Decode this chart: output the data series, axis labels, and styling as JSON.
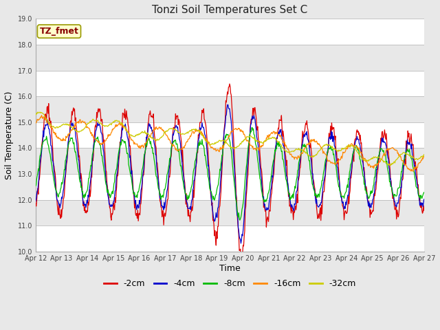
{
  "title": "Tonzi Soil Temperatures Set C",
  "xlabel": "Time",
  "ylabel": "Soil Temperature (C)",
  "ylim": [
    10.0,
    19.0
  ],
  "yticks": [
    10.0,
    11.0,
    12.0,
    13.0,
    14.0,
    15.0,
    16.0,
    17.0,
    18.0,
    19.0
  ],
  "bg_color": "#e8e8e8",
  "line_colors": [
    "#dd0000",
    "#0000cc",
    "#00bb00",
    "#ff8800",
    "#cccc00"
  ],
  "line_labels": [
    "-2cm",
    "-4cm",
    "-8cm",
    "-16cm",
    "-32cm"
  ],
  "legend_label": "TZ_fmet",
  "legend_bg": "#ffffcc",
  "legend_border": "#999900",
  "xtick_labels": [
    "Apr 12",
    "Apr 13",
    "Apr 14",
    "Apr 15",
    "Apr 16",
    "Apr 17",
    "Apr 18",
    "Apr 19",
    "Apr 20",
    "Apr 21",
    "Apr 22",
    "Apr 23",
    "Apr 24",
    "Apr 25",
    "Apr 26",
    "Apr 27"
  ],
  "n_days": 15,
  "title_fontsize": 11,
  "axis_fontsize": 9,
  "tick_fontsize": 7
}
